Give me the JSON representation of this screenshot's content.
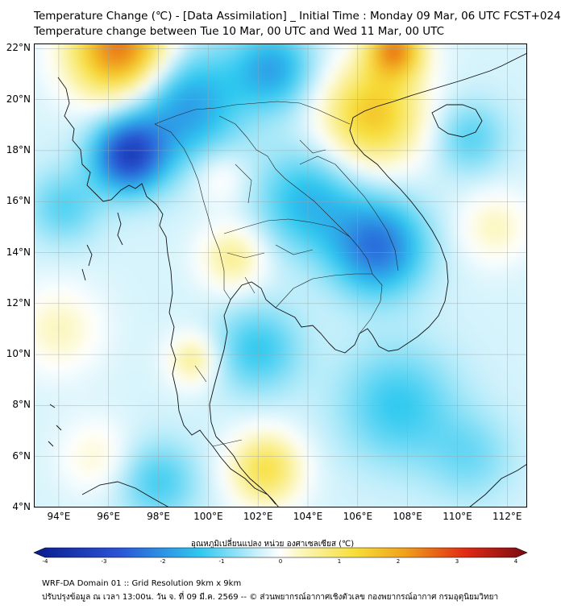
{
  "title": {
    "line1": "Temperature Change (℃) - [Data Assimilation] _ Initial Time : Monday 09 Mar, 06 UTC FCST+024",
    "line2": "Temperature change between Tue 10 Mar, 00 UTC and Wed 11 Mar, 00 UTC"
  },
  "map": {
    "lat_labels": [
      "22°N",
      "20°N",
      "18°N",
      "16°N",
      "14°N",
      "12°N",
      "10°N",
      "8°N",
      "6°N",
      "4°N"
    ],
    "lon_labels": [
      "94°E",
      "96°E",
      "98°E",
      "100°E",
      "102°E",
      "104°E",
      "106°E",
      "108°E",
      "110°E",
      "112°E"
    ],
    "lat_values": [
      22,
      20,
      18,
      16,
      14,
      12,
      10,
      8,
      6,
      4
    ],
    "lon_values": [
      94,
      96,
      98,
      100,
      102,
      104,
      106,
      108,
      110,
      112
    ],
    "lon_range": [
      93,
      112.8
    ],
    "lat_range": [
      4,
      22.2
    ],
    "anomalies": [
      {
        "name": "warm-nw",
        "lon": 96.5,
        "lat": 22.0,
        "value": 2.8,
        "spread": 1.4
      },
      {
        "name": "warm-north-vietnam",
        "lon": 106.6,
        "lat": 19.4,
        "value": 1.8,
        "spread": 1.4
      },
      {
        "name": "warm-ne-corner",
        "lon": 107.5,
        "lat": 22.0,
        "value": 2.4,
        "spread": 0.8
      },
      {
        "name": "warm-central-thailand",
        "lon": 101.0,
        "lat": 13.8,
        "value": 0.9,
        "spread": 0.9
      },
      {
        "name": "warm-peninsula",
        "lon": 99.4,
        "lat": 9.8,
        "value": 0.9,
        "spread": 0.7
      },
      {
        "name": "warm-south-malay",
        "lon": 102.3,
        "lat": 5.5,
        "value": 1.4,
        "spread": 1.0
      },
      {
        "name": "warm-north-thailand",
        "lon": 100.5,
        "lat": 17.0,
        "value": 0.5,
        "spread": 0.8
      },
      {
        "name": "warm-andaman",
        "lon": 94.0,
        "lat": 11.0,
        "value": 0.6,
        "spread": 1.2
      },
      {
        "name": "warm-east",
        "lon": 111.5,
        "lat": 15.0,
        "value": 0.6,
        "spread": 1.0
      },
      {
        "name": "warm-sw",
        "lon": 95.5,
        "lat": 6.0,
        "value": 0.5,
        "spread": 1.0
      },
      {
        "name": "cold-myanmar",
        "lon": 96.8,
        "lat": 17.8,
        "value": -2.6,
        "spread": 1.0
      },
      {
        "name": "cold-myanmar-band",
        "lon": 99.0,
        "lat": 19.8,
        "value": -1.6,
        "spread": 1.6
      },
      {
        "name": "cold-cambodia",
        "lon": 106.8,
        "lat": 14.2,
        "value": -2.0,
        "spread": 1.3
      },
      {
        "name": "cold-laos",
        "lon": 104.0,
        "lat": 16.0,
        "value": -1.2,
        "spread": 1.4
      },
      {
        "name": "cold-north",
        "lon": 102.6,
        "lat": 21.2,
        "value": -1.4,
        "spread": 1.1
      },
      {
        "name": "cold-gulf",
        "lon": 102.0,
        "lat": 10.2,
        "value": -1.0,
        "spread": 1.2
      },
      {
        "name": "cold-west",
        "lon": 94.2,
        "lat": 15.8,
        "value": -0.8,
        "spread": 1.0
      },
      {
        "name": "cold-south-east",
        "lon": 107.6,
        "lat": 8.0,
        "value": -1.0,
        "spread": 1.6
      },
      {
        "name": "cold-south",
        "lon": 98.0,
        "lat": 5.0,
        "value": -0.9,
        "spread": 1.1
      },
      {
        "name": "cold-scs",
        "lon": 110.5,
        "lat": 18.5,
        "value": -0.8,
        "spread": 1.0
      },
      {
        "name": "cold-far-south-east",
        "lon": 110.5,
        "lat": 6.0,
        "value": -0.6,
        "spread": 1.2
      }
    ]
  },
  "colorbar": {
    "title": "อุณหภูมิเปลี่ยนแปลง หน่วย องศาเซลเซียส (℃)",
    "ticks": [
      "-4",
      "-3",
      "-2",
      "-1",
      "0",
      "1",
      "2",
      "3",
      "4"
    ],
    "tick_values": [
      -4,
      -3,
      -2,
      -1,
      0,
      1,
      2,
      3,
      4
    ],
    "range": [
      -4,
      4
    ],
    "colors": {
      "darkblue": "#0a1b8c",
      "blue": "#2b55d6",
      "cyan": "#2fc9f0",
      "paleblue": "#cdf1fb",
      "white": "#ffffff",
      "paleyellow": "#fbf6b8",
      "yellow": "#f7df3a",
      "orange": "#f0a21b",
      "red": "#e02b14",
      "darkred": "#7a0a12"
    }
  },
  "footer": {
    "line1": "WRF-DA Domain 01 :: Grid Resolution 9km x 9km",
    "line2": "ปรับปรุงข้อมูล ณ เวลา 13:00น. วัน จ. ที่ 09 มี.ค. 2569 -- © ส่วนพยากรณ์อากาศเชิงตัวเลข กองพยากรณ์อากาศ กรมอุตุนิยมวิทยา"
  }
}
